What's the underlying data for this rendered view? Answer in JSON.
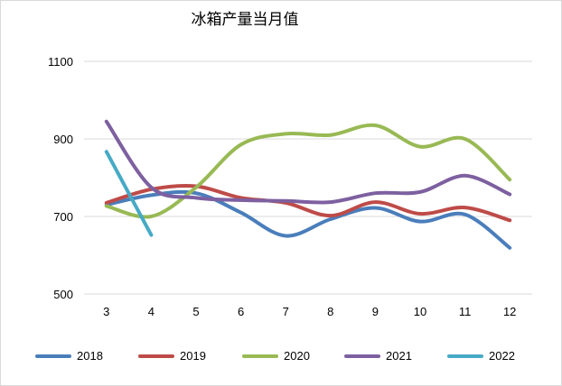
{
  "chart_data": {
    "type": "line",
    "title": "冰箱产量当月值",
    "xlabel": "",
    "ylabel": "",
    "categories": [
      "3",
      "4",
      "5",
      "6",
      "7",
      "8",
      "9",
      "10",
      "11",
      "12"
    ],
    "y_ticks": [
      "500",
      "700",
      "900",
      "1100"
    ],
    "ylim": [
      500,
      1100
    ],
    "grid": true,
    "legend_position": "bottom",
    "smooth": true,
    "series": [
      {
        "name": "2018",
        "color": "#4a7ebb",
        "values": [
          730,
          755,
          760,
          710,
          650,
          693,
          722,
          687,
          705,
          619
        ]
      },
      {
        "name": "2019",
        "color": "#be4b48",
        "values": [
          735,
          770,
          778,
          748,
          735,
          702,
          737,
          707,
          723,
          690
        ]
      },
      {
        "name": "2020",
        "color": "#98b954",
        "values": [
          727,
          700,
          775,
          885,
          913,
          910,
          935,
          880,
          900,
          795
        ]
      },
      {
        "name": "2021",
        "color": "#7d60a0",
        "values": [
          945,
          775,
          748,
          742,
          740,
          737,
          760,
          763,
          805,
          757
        ]
      },
      {
        "name": "2022",
        "color": "#46aac5",
        "values": [
          867,
          652,
          null,
          null,
          null,
          null,
          null,
          null,
          null,
          null
        ]
      }
    ]
  }
}
